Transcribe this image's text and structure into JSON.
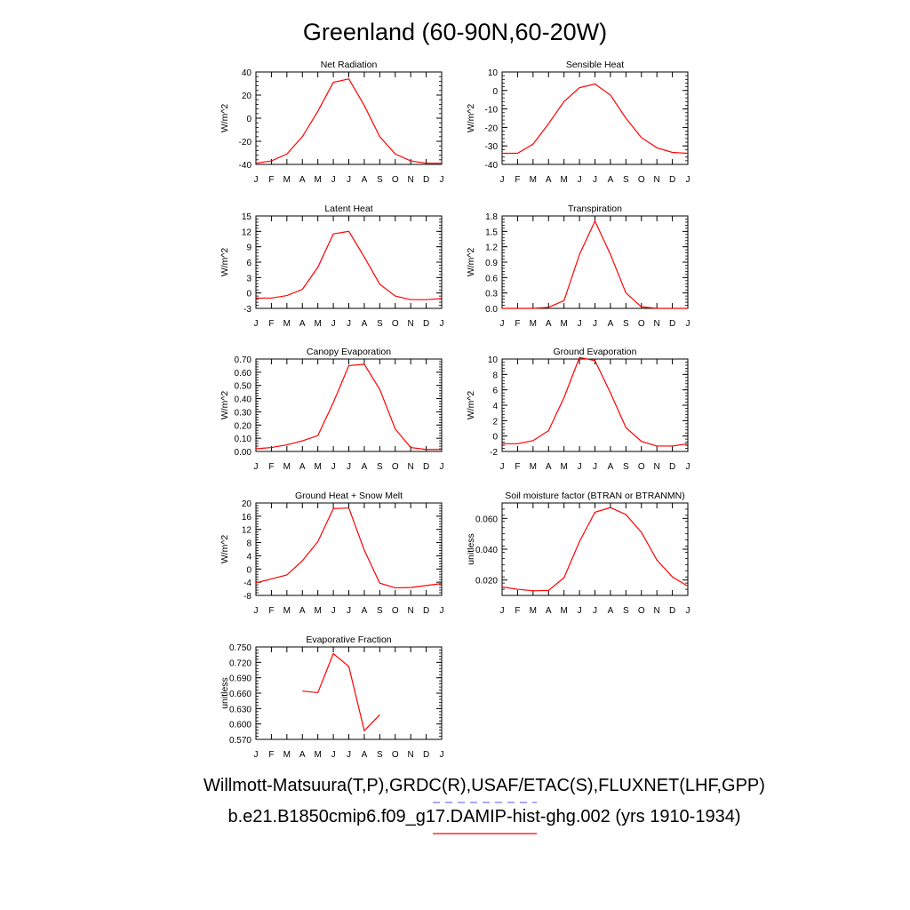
{
  "title": "Greenland (60-90N,60-20W)",
  "legend": {
    "obs_label": "Willmott-Matsuura(T,P),GRDC(R),USAF/ETAC(S),FLUXNET(LHF,GPP)",
    "obs_color": "#7777ee",
    "model_label": "b.e21.B1850cmip6.f09_g17.DAMIP-hist-ghg.002 (yrs 1910-1934)",
    "model_color": "#ff0000"
  },
  "chart_data": [
    {
      "type": "line",
      "title": "Net Radiation",
      "ylabel": "W/m^2",
      "x_ticks": [
        "J",
        "F",
        "M",
        "A",
        "M",
        "J",
        "J",
        "A",
        "S",
        "O",
        "N",
        "D",
        "J"
      ],
      "ylim": [
        -40,
        40
      ],
      "y_ticks": [
        "-40",
        "-20",
        "0",
        "20",
        "40"
      ],
      "series": [
        {
          "color": "#ff0000",
          "values": [
            -39,
            -37,
            -31,
            -16,
            6,
            31,
            34,
            11,
            -16,
            -31,
            -37,
            -39,
            -39
          ]
        }
      ]
    },
    {
      "type": "line",
      "title": "Sensible Heat",
      "ylabel": "W/m^2",
      "x_ticks": [
        "J",
        "F",
        "M",
        "A",
        "M",
        "J",
        "J",
        "A",
        "S",
        "O",
        "N",
        "D",
        "J"
      ],
      "ylim": [
        -40,
        10
      ],
      "y_ticks": [
        "-40",
        "-30",
        "-20",
        "-10",
        "0",
        "10"
      ],
      "series": [
        {
          "color": "#ff0000",
          "values": [
            -34,
            -34,
            -29,
            -18,
            -6,
            1.5,
            3.5,
            -2.5,
            -15,
            -25.5,
            -31,
            -33.5,
            -34
          ]
        }
      ]
    },
    {
      "type": "line",
      "title": "Latent Heat",
      "ylabel": "W/m^2",
      "x_ticks": [
        "J",
        "F",
        "M",
        "A",
        "M",
        "J",
        "J",
        "A",
        "S",
        "O",
        "N",
        "D",
        "J"
      ],
      "ylim": [
        -3,
        15
      ],
      "y_ticks": [
        "-3",
        "0",
        "3",
        "6",
        "9",
        "12",
        "15"
      ],
      "series": [
        {
          "color": "#ff0000",
          "values": [
            -1,
            -1,
            -0.5,
            0.7,
            5,
            11.5,
            12,
            7,
            1.7,
            -0.6,
            -1.3,
            -1.3,
            -1.1
          ]
        }
      ]
    },
    {
      "type": "line",
      "title": "Transpiration",
      "ylabel": "W/m^2",
      "x_ticks": [
        "J",
        "F",
        "M",
        "A",
        "M",
        "J",
        "J",
        "A",
        "S",
        "O",
        "N",
        "D",
        "J"
      ],
      "ylim": [
        0,
        1.8
      ],
      "y_ticks": [
        "0.0",
        "0.3",
        "0.6",
        "0.9",
        "1.2",
        "1.5",
        "1.8"
      ],
      "series": [
        {
          "color": "#ff0000",
          "values": [
            0,
            0,
            0,
            0.02,
            0.15,
            1.05,
            1.7,
            1.05,
            0.3,
            0.03,
            0,
            0,
            0
          ]
        }
      ]
    },
    {
      "type": "line",
      "title": "Canopy Evaporation",
      "ylabel": "W/m^2",
      "x_ticks": [
        "J",
        "F",
        "M",
        "A",
        "M",
        "J",
        "J",
        "A",
        "S",
        "O",
        "N",
        "D",
        "J"
      ],
      "ylim": [
        0,
        0.7
      ],
      "y_ticks": [
        "0.00",
        "0.10",
        "0.20",
        "0.30",
        "0.40",
        "0.50",
        "0.60",
        "0.70"
      ],
      "series": [
        {
          "color": "#ff0000",
          "values": [
            0.02,
            0.03,
            0.05,
            0.08,
            0.12,
            0.37,
            0.65,
            0.66,
            0.47,
            0.17,
            0.03,
            0.015,
            0.015
          ]
        }
      ]
    },
    {
      "type": "line",
      "title": "Ground Evaporation",
      "ylabel": "W/m^2",
      "x_ticks": [
        "J",
        "F",
        "M",
        "A",
        "M",
        "J",
        "J",
        "A",
        "S",
        "O",
        "N",
        "D",
        "J"
      ],
      "ylim": [
        -2,
        10
      ],
      "y_ticks": [
        "-2",
        "0",
        "2",
        "4",
        "6",
        "8",
        "10"
      ],
      "series": [
        {
          "color": "#ff0000",
          "values": [
            -1,
            -1,
            -0.6,
            0.7,
            5,
            10.2,
            9.8,
            5.6,
            1.1,
            -0.7,
            -1.3,
            -1.3,
            -1
          ]
        }
      ]
    },
    {
      "type": "line",
      "title": "Ground Heat + Snow Melt",
      "ylabel": "W/m^2",
      "x_ticks": [
        "J",
        "F",
        "M",
        "A",
        "M",
        "J",
        "J",
        "A",
        "S",
        "O",
        "N",
        "D",
        "J"
      ],
      "ylim": [
        -8,
        20
      ],
      "y_ticks": [
        "-8",
        "-4",
        "0",
        "4",
        "8",
        "12",
        "16",
        "20"
      ],
      "series": [
        {
          "color": "#ff0000",
          "values": [
            -4.2,
            -3,
            -1.8,
            2.5,
            8.3,
            18.3,
            18.5,
            5.7,
            -4.3,
            -5.7,
            -5.6,
            -5,
            -4.4
          ]
        }
      ]
    },
    {
      "type": "line",
      "title": "Soil moisture factor (BTRAN or BTRANMN)",
      "ylabel": "unitless",
      "x_ticks": [
        "J",
        "F",
        "M",
        "A",
        "M",
        "J",
        "J",
        "A",
        "S",
        "O",
        "N",
        "D",
        "J"
      ],
      "ylim": [
        0.01,
        0.07
      ],
      "y_ticks": [
        "0.020",
        "0.040",
        "0.060"
      ],
      "y_tick_values": [
        0.02,
        0.04,
        0.06
      ],
      "series": [
        {
          "color": "#ff0000",
          "values": [
            0.0155,
            0.014,
            0.013,
            0.0132,
            0.0215,
            0.045,
            0.064,
            0.067,
            0.0625,
            0.051,
            0.033,
            0.022,
            0.016
          ]
        }
      ]
    },
    {
      "type": "line",
      "title": "Evaporative Fraction",
      "ylabel": "unitless",
      "x_ticks": [
        "J",
        "F",
        "M",
        "A",
        "M",
        "J",
        "J",
        "A",
        "S",
        "O",
        "N",
        "D",
        "J"
      ],
      "ylim": [
        0.57,
        0.75
      ],
      "y_ticks": [
        "0.570",
        "0.600",
        "0.630",
        "0.660",
        "0.690",
        "0.720",
        "0.750"
      ],
      "series": [
        {
          "color": "#ff0000",
          "values": [
            null,
            null,
            null,
            0.664,
            0.661,
            0.737,
            0.712,
            0.587,
            0.618,
            null,
            null,
            null,
            null
          ]
        }
      ]
    }
  ]
}
